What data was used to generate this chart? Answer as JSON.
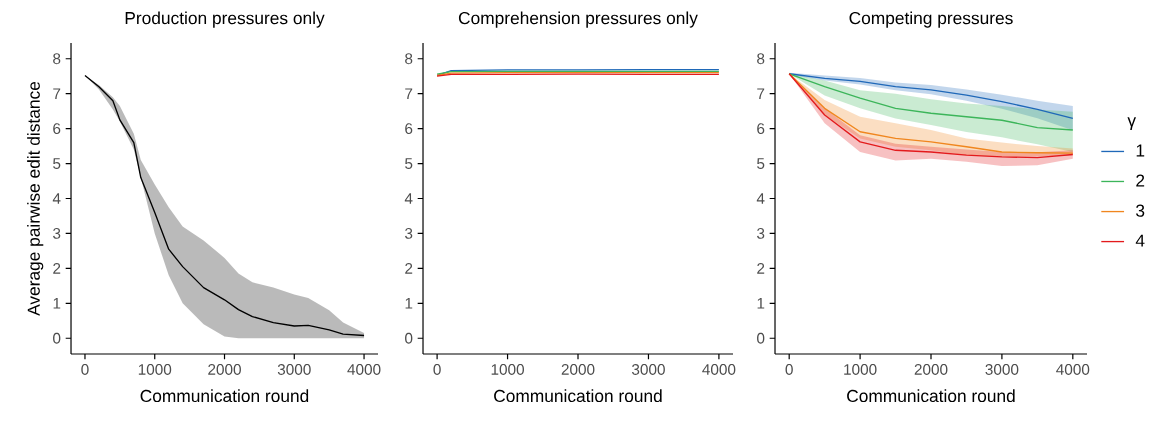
{
  "chart_data": [
    {
      "type": "line",
      "title": "Production pressures only",
      "xlabel": "Communication round",
      "ylabel": "Average pairwise edit distance",
      "xlim": [
        -200,
        4200
      ],
      "ylim": [
        -0.45,
        8.45
      ],
      "xticks": [
        0,
        1000,
        2000,
        3000,
        4000
      ],
      "yticks": [
        0,
        1,
        2,
        3,
        4,
        5,
        6,
        7,
        8
      ],
      "x": [
        0,
        200,
        400,
        500,
        700,
        800,
        1000,
        1200,
        1400,
        1700,
        2000,
        2200,
        2400,
        2700,
        3000,
        3200,
        3500,
        3700,
        4000
      ],
      "series": [
        {
          "color": "#000000",
          "values": [
            7.52,
            7.2,
            6.8,
            6.25,
            5.6,
            4.6,
            3.6,
            2.55,
            2.05,
            1.45,
            1.1,
            0.82,
            0.62,
            0.45,
            0.35,
            0.37,
            0.24,
            0.12,
            0.08
          ],
          "upper": [
            7.52,
            7.25,
            6.9,
            6.65,
            5.85,
            5.1,
            4.4,
            3.75,
            3.2,
            2.8,
            2.3,
            1.85,
            1.6,
            1.45,
            1.25,
            1.15,
            0.8,
            0.45,
            0.15
          ],
          "lower": [
            7.52,
            7.12,
            6.55,
            6.2,
            5.4,
            4.6,
            3.0,
            1.8,
            1.0,
            0.4,
            0.05,
            0,
            0,
            0,
            0,
            0,
            0,
            0,
            0
          ]
        }
      ]
    },
    {
      "type": "line",
      "title": "Comprehension pressures only",
      "xlabel": "Communication round",
      "xlim": [
        -200,
        4200
      ],
      "ylim": [
        -0.45,
        8.45
      ],
      "xticks": [
        0,
        1000,
        2000,
        3000,
        4000
      ],
      "yticks": [
        0,
        1,
        2,
        3,
        4,
        5,
        6,
        7,
        8
      ],
      "x": [
        0,
        200,
        1000,
        2000,
        3000,
        4000
      ],
      "series": [
        {
          "color": "#1f68b8",
          "values": [
            7.52,
            7.66,
            7.68,
            7.68,
            7.69,
            7.69
          ]
        },
        {
          "color": "#3cb55a",
          "values": [
            7.56,
            7.63,
            7.64,
            7.64,
            7.64,
            7.64
          ]
        },
        {
          "color": "#f0861e",
          "values": [
            7.52,
            7.59,
            7.6,
            7.6,
            7.6,
            7.6
          ]
        },
        {
          "color": "#e31a1c",
          "values": [
            7.5,
            7.55,
            7.55,
            7.56,
            7.55,
            7.55
          ]
        }
      ]
    },
    {
      "type": "line",
      "title": "Competing pressures",
      "xlabel": "Communication round",
      "xlim": [
        -200,
        4200
      ],
      "ylim": [
        -0.45,
        8.45
      ],
      "xticks": [
        0,
        1000,
        2000,
        3000,
        4000
      ],
      "yticks": [
        0,
        1,
        2,
        3,
        4,
        5,
        6,
        7,
        8
      ],
      "legend": "right",
      "legend_title": "γ",
      "x": [
        0,
        500,
        1000,
        1500,
        2000,
        2500,
        3000,
        3500,
        4000
      ],
      "series": [
        {
          "name": "1",
          "color": "#1f68b8",
          "values": [
            7.57,
            7.44,
            7.35,
            7.2,
            7.11,
            6.96,
            6.77,
            6.55,
            6.29
          ],
          "upper": [
            7.6,
            7.52,
            7.45,
            7.32,
            7.25,
            7.12,
            6.97,
            6.8,
            6.65
          ],
          "lower": [
            7.54,
            7.38,
            7.26,
            7.1,
            6.98,
            6.8,
            6.57,
            6.3,
            5.95
          ]
        },
        {
          "name": "2",
          "color": "#3cb55a",
          "values": [
            7.57,
            7.2,
            6.87,
            6.58,
            6.44,
            6.34,
            6.24,
            6.03,
            5.96
          ],
          "upper": [
            7.57,
            7.38,
            7.1,
            7.0,
            6.84,
            6.72,
            6.65,
            6.55,
            6.48
          ],
          "lower": [
            7.57,
            6.95,
            6.58,
            6.29,
            6.1,
            5.9,
            5.75,
            5.55,
            5.33
          ]
        },
        {
          "name": "3",
          "color": "#f0861e",
          "values": [
            7.57,
            6.58,
            5.91,
            5.72,
            5.62,
            5.48,
            5.33,
            5.31,
            5.3
          ],
          "upper": [
            7.57,
            6.82,
            6.34,
            6.15,
            5.96,
            5.72,
            5.6,
            5.5,
            5.43
          ],
          "lower": [
            7.57,
            6.39,
            5.72,
            5.48,
            5.38,
            5.24,
            5.19,
            5.2,
            5.24
          ]
        },
        {
          "name": "4",
          "color": "#e31a1c",
          "values": [
            7.57,
            6.39,
            5.62,
            5.38,
            5.33,
            5.24,
            5.19,
            5.17,
            5.26
          ],
          "upper": [
            7.57,
            6.58,
            5.81,
            5.57,
            5.48,
            5.4,
            5.33,
            5.32,
            5.38
          ],
          "lower": [
            7.57,
            6.15,
            5.33,
            5.09,
            5.14,
            5.05,
            4.93,
            4.95,
            5.14
          ]
        }
      ]
    }
  ]
}
